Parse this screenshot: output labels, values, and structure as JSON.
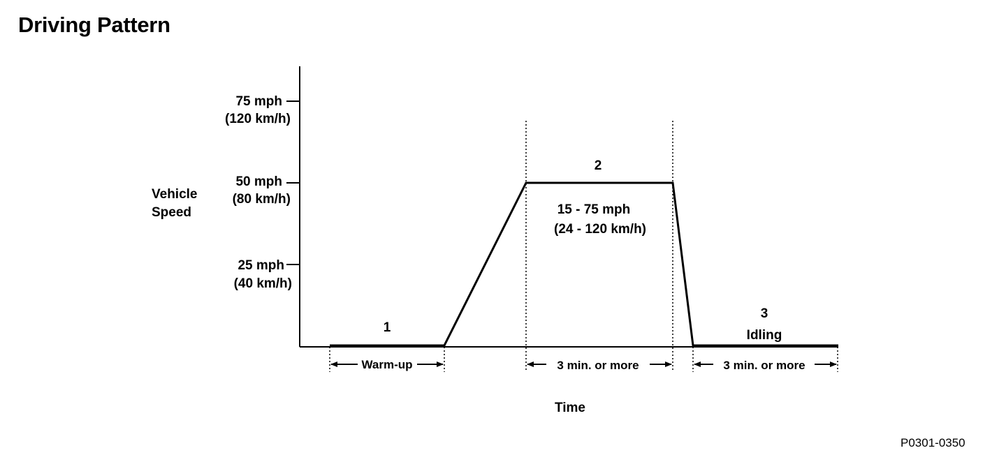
{
  "title": "Driving Pattern",
  "figure_code": "P0301-0350",
  "y_axis_label": [
    "Vehicle",
    "Speed"
  ],
  "x_axis_label": "Time",
  "y_ticks": [
    {
      "value": 25,
      "mph": "25 mph",
      "kmh": "(40 km/h)"
    },
    {
      "value": 50,
      "mph": "50 mph",
      "kmh": "(80 km/h)"
    },
    {
      "value": 75,
      "mph": "75 mph",
      "kmh": "(120 km/h)"
    }
  ],
  "phases": [
    {
      "number": "1",
      "name": "",
      "duration": "Warm-up"
    },
    {
      "number": "2",
      "range_mph": "15 - 75 mph",
      "range_kmh": "(24 - 120 km/h)",
      "duration": "3 min. or  more"
    },
    {
      "number": "3",
      "name": "Idling",
      "duration": "3 min. or  more"
    }
  ],
  "colors": {
    "line": "#000000",
    "background": "#ffffff"
  }
}
